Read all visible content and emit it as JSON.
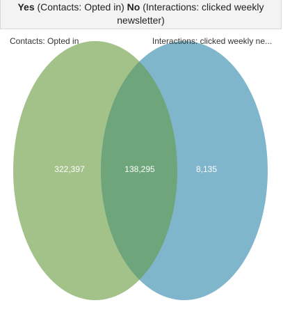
{
  "chart_data": {
    "type": "venn",
    "title_parts": [
      {
        "text": "Yes",
        "bold": true
      },
      {
        "text": "(Contacts: Opted in)",
        "bold": false
      },
      {
        "text": "No",
        "bold": true
      },
      {
        "text": "(Interactions: clicked weekly newsletter)",
        "bold": false
      }
    ],
    "sets": [
      {
        "name": "Contacts: Opted in",
        "color": "#a3c28a"
      },
      {
        "name": "Interactions: clicked weekly ne...",
        "color": "#80b6cc"
      }
    ],
    "overlap_color": "#6ea57a",
    "regions": [
      "only-first",
      "both",
      "only-second"
    ],
    "values": [
      322397,
      138295,
      8135
    ],
    "value_labels": [
      "322,397",
      "138,295",
      "8,135"
    ]
  }
}
